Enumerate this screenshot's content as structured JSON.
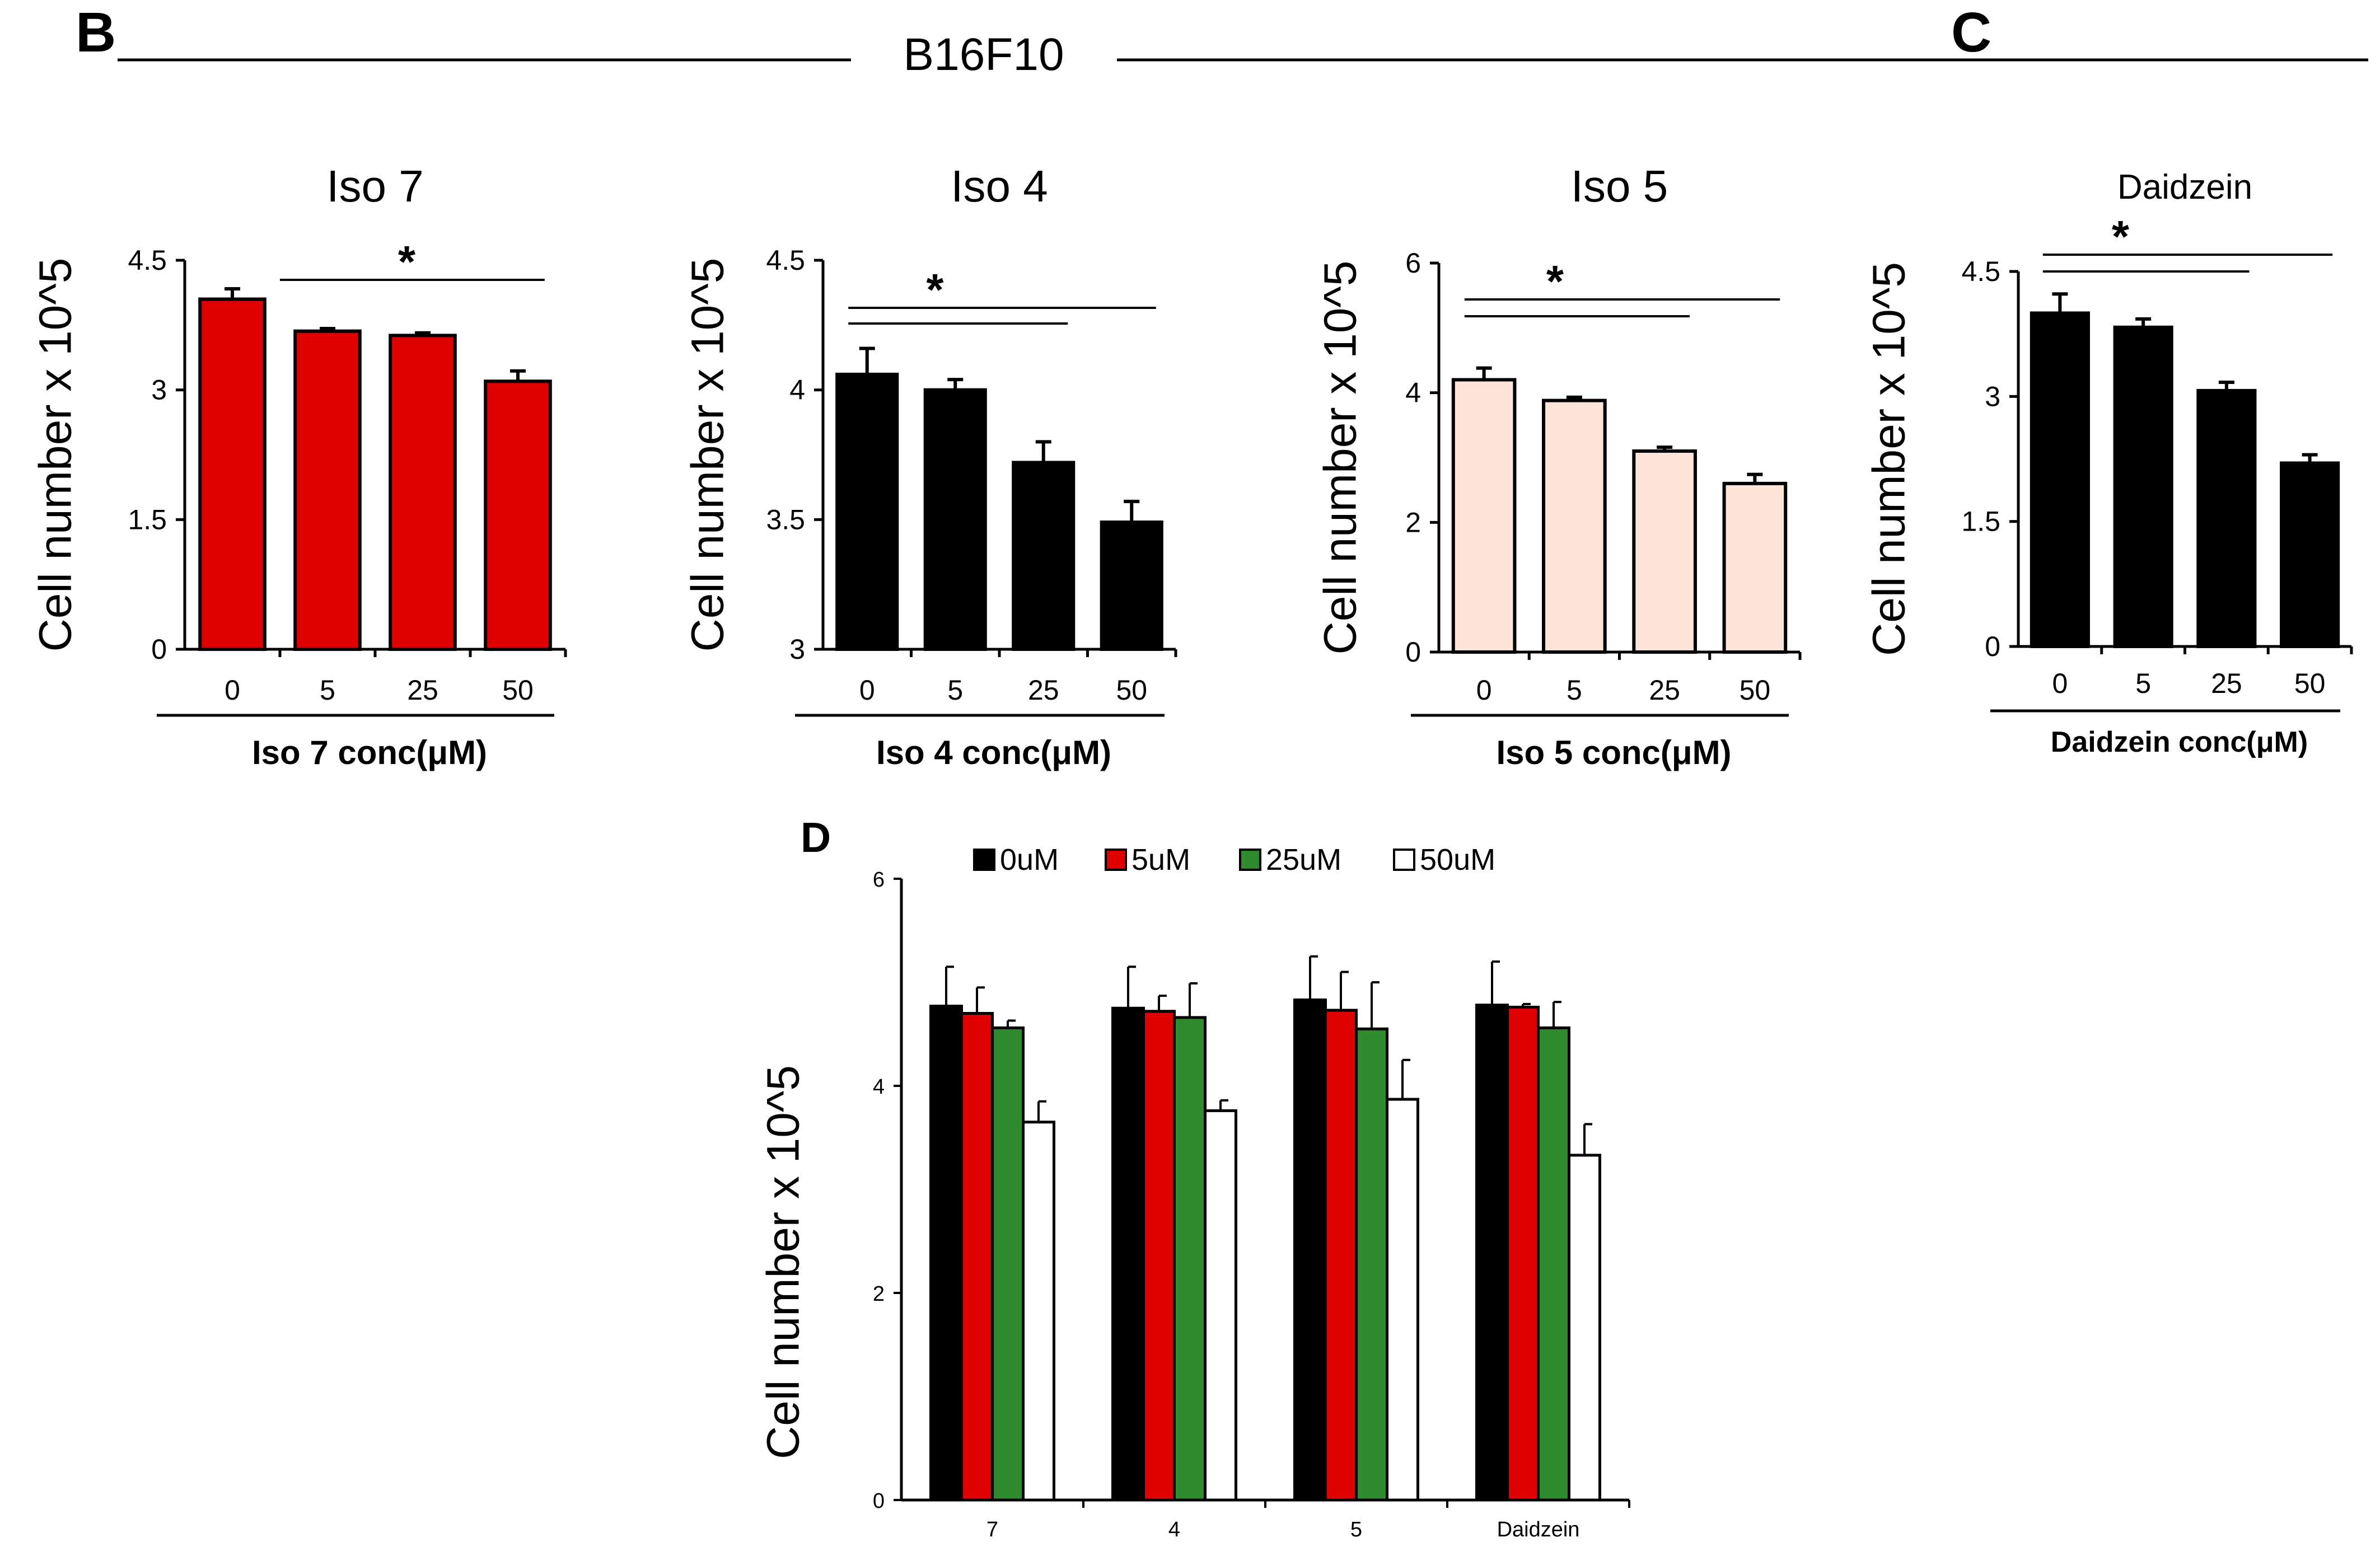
{
  "header": {
    "panel_b_letter": "B",
    "panel_c_letter": "C",
    "panel_d_letter": "D",
    "cell_line": "B16F10"
  },
  "colors": {
    "red": "#e00000",
    "black": "#000000",
    "peach": "#fde4d6",
    "green": "#2e8b2e",
    "white": "#ffffff"
  },
  "chart_data": [
    {
      "id": "iso7",
      "type": "bar",
      "title": "Iso 7",
      "ylabel": "Cell number x 10^5",
      "xlabel": "Iso 7 conc(μM)",
      "categories": [
        "0",
        "5",
        "25",
        "50"
      ],
      "values": [
        4.05,
        3.68,
        3.63,
        3.1
      ],
      "errors": [
        0.12,
        0.03,
        0.03,
        0.12
      ],
      "ylim": [
        0,
        4.5
      ],
      "yticks": [
        "0",
        "1.5",
        "3",
        "4.5"
      ],
      "ytick_values": [
        0,
        1.5,
        3,
        4.5
      ],
      "bar_color": "#e00000",
      "significance": [
        {
          "from": 0,
          "to": 3,
          "label": "*"
        }
      ]
    },
    {
      "id": "iso4",
      "type": "bar",
      "title": "Iso 4",
      "ylabel": "Cell number x 10^5",
      "xlabel": "Iso 4 conc(μM)",
      "categories": [
        "0",
        "5",
        "25",
        "50"
      ],
      "values": [
        4.06,
        4.0,
        3.72,
        3.49
      ],
      "errors": [
        0.1,
        0.04,
        0.08,
        0.08
      ],
      "ylim": [
        3,
        4.5
      ],
      "yticks": [
        "3",
        "3.5",
        "4",
        "4.5"
      ],
      "ytick_values": [
        3,
        3.5,
        4,
        4.5
      ],
      "bar_color": "#000000",
      "significance": [
        {
          "from": 0,
          "to": 2,
          "label": ""
        },
        {
          "from": 0,
          "to": 3,
          "label": "*"
        }
      ]
    },
    {
      "id": "iso5",
      "type": "bar",
      "title": "Iso 5",
      "ylabel": "Cell number x 10^5",
      "xlabel": "Iso 5 conc(μM)",
      "categories": [
        "0",
        "5",
        "25",
        "50"
      ],
      "values": [
        4.2,
        3.88,
        3.1,
        2.6
      ],
      "errors": [
        0.18,
        0.05,
        0.06,
        0.14
      ],
      "ylim": [
        0,
        6
      ],
      "yticks": [
        "0",
        "2",
        "4",
        "6"
      ],
      "ytick_values": [
        0,
        2,
        4,
        6
      ],
      "bar_color": "#fde4d6",
      "significance": [
        {
          "from": 0,
          "to": 2,
          "label": ""
        },
        {
          "from": 0,
          "to": 3,
          "label": "*"
        }
      ]
    },
    {
      "id": "daidzein",
      "type": "bar",
      "title": "Daidzein",
      "ylabel": "Cell number x 10^5",
      "xlabel": "Daidzein conc(μM)",
      "categories": [
        "0",
        "5",
        "25",
        "50"
      ],
      "values": [
        4.0,
        3.83,
        3.07,
        2.2
      ],
      "errors": [
        0.23,
        0.1,
        0.1,
        0.1
      ],
      "ylim": [
        0,
        4.5
      ],
      "yticks": [
        "0",
        "1.5",
        "3",
        "4.5"
      ],
      "ytick_values": [
        0,
        1.5,
        3,
        4.5
      ],
      "bar_color": "#000000",
      "significance": [
        {
          "from": 0,
          "to": 2,
          "label": ""
        },
        {
          "from": 0,
          "to": 3,
          "label": "*"
        }
      ]
    },
    {
      "id": "grouped",
      "type": "bar",
      "title": "",
      "ylabel": "Cell number x 10^5",
      "xlabel": "",
      "categories": [
        "7",
        "4",
        "5",
        "Daidzein"
      ],
      "ylim": [
        0,
        6
      ],
      "yticks": [
        "0",
        "2",
        "4",
        "6"
      ],
      "ytick_values": [
        0,
        2,
        4,
        6
      ],
      "legend_position": "top",
      "series": [
        {
          "name": "0uM",
          "color": "#000000",
          "values": [
            4.77,
            4.75,
            4.83,
            4.78
          ],
          "errors": [
            0.38,
            0.4,
            0.42,
            0.42
          ]
        },
        {
          "name": "5uM",
          "color": "#e00000",
          "values": [
            4.7,
            4.72,
            4.73,
            4.76
          ],
          "errors": [
            0.25,
            0.15,
            0.37,
            0.03
          ]
        },
        {
          "name": "25uM",
          "color": "#2e8b2e",
          "values": [
            4.56,
            4.66,
            4.55,
            4.56
          ],
          "errors": [
            0.07,
            0.33,
            0.45,
            0.25
          ]
        },
        {
          "name": "50uM",
          "color": "#ffffff",
          "values": [
            3.65,
            3.76,
            3.87,
            3.33
          ],
          "errors": [
            0.2,
            0.1,
            0.38,
            0.3
          ]
        }
      ]
    }
  ]
}
